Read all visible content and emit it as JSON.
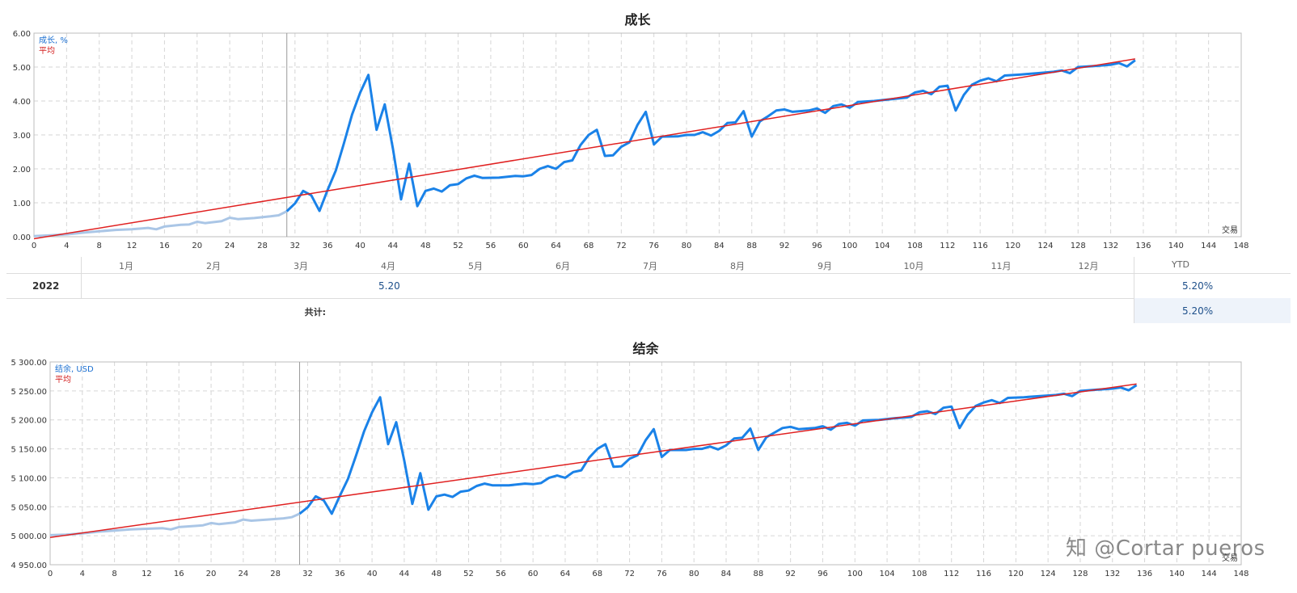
{
  "chart_data": [
    {
      "type": "line",
      "title": "成长",
      "legend": [
        "成长, %",
        "平均"
      ],
      "xlabel": "交易",
      "xlim": [
        0,
        148
      ],
      "ylim": [
        0,
        6
      ],
      "x_ticks": [
        0,
        4,
        8,
        12,
        16,
        20,
        24,
        28,
        32,
        36,
        40,
        44,
        48,
        52,
        56,
        60,
        64,
        68,
        72,
        76,
        80,
        84,
        88,
        92,
        96,
        100,
        104,
        108,
        112,
        116,
        120,
        124,
        128,
        132,
        136,
        140,
        144,
        148
      ],
      "y_ticks": [
        "0.00",
        "1.00",
        "2.00",
        "3.00",
        "4.00",
        "5.00",
        "6.00"
      ],
      "y_tick_values": [
        0,
        1,
        2,
        3,
        4,
        5,
        6
      ],
      "grid": true,
      "legend_position": "top-left",
      "divider_x": 31,
      "colors": {
        "line": "#1a82e8",
        "early_line": "#aac6e6",
        "average": "#e02020"
      },
      "series": [
        {
          "name": "成长, %",
          "points": [
            [
              0,
              0.02
            ],
            [
              2,
              0.04
            ],
            [
              4,
              0.07
            ],
            [
              6,
              0.12
            ],
            [
              8,
              0.16
            ],
            [
              10,
              0.2
            ],
            [
              12,
              0.22
            ],
            [
              14,
              0.26
            ],
            [
              15,
              0.22
            ],
            [
              16,
              0.3
            ],
            [
              18,
              0.35
            ],
            [
              19,
              0.36
            ],
            [
              20,
              0.44
            ],
            [
              21,
              0.4
            ],
            [
              23,
              0.46
            ],
            [
              24,
              0.56
            ],
            [
              25,
              0.52
            ],
            [
              27,
              0.55
            ],
            [
              29,
              0.6
            ],
            [
              30,
              0.63
            ],
            [
              31,
              0.75
            ],
            [
              32,
              0.98
            ],
            [
              33,
              1.35
            ],
            [
              34,
              1.22
            ],
            [
              35,
              0.76
            ],
            [
              36,
              1.38
            ],
            [
              37,
              1.95
            ],
            [
              38,
              2.75
            ],
            [
              39,
              3.6
            ],
            [
              40,
              4.25
            ],
            [
              41,
              4.77
            ],
            [
              42,
              3.15
            ],
            [
              43,
              3.9
            ],
            [
              44,
              2.6
            ],
            [
              45,
              1.1
            ],
            [
              46,
              2.15
            ],
            [
              47,
              0.9
            ],
            [
              48,
              1.35
            ],
            [
              49,
              1.42
            ],
            [
              50,
              1.33
            ],
            [
              51,
              1.52
            ],
            [
              52,
              1.55
            ],
            [
              53,
              1.72
            ],
            [
              54,
              1.8
            ],
            [
              55,
              1.73
            ],
            [
              57,
              1.74
            ],
            [
              59,
              1.79
            ],
            [
              60,
              1.78
            ],
            [
              61,
              1.82
            ],
            [
              62,
              2.0
            ],
            [
              63,
              2.08
            ],
            [
              64,
              2.0
            ],
            [
              65,
              2.2
            ],
            [
              66,
              2.25
            ],
            [
              67,
              2.7
            ],
            [
              68,
              3.0
            ],
            [
              69,
              3.15
            ],
            [
              70,
              2.38
            ],
            [
              71,
              2.4
            ],
            [
              72,
              2.65
            ],
            [
              73,
              2.78
            ],
            [
              74,
              3.3
            ],
            [
              75,
              3.68
            ],
            [
              76,
              2.72
            ],
            [
              77,
              2.95
            ],
            [
              79,
              2.96
            ],
            [
              80,
              3.0
            ],
            [
              81,
              3.0
            ],
            [
              82,
              3.08
            ],
            [
              83,
              2.98
            ],
            [
              84,
              3.12
            ],
            [
              85,
              3.35
            ],
            [
              86,
              3.37
            ],
            [
              87,
              3.7
            ],
            [
              88,
              2.95
            ],
            [
              89,
              3.4
            ],
            [
              90,
              3.55
            ],
            [
              91,
              3.72
            ],
            [
              92,
              3.75
            ],
            [
              93,
              3.68
            ],
            [
              95,
              3.72
            ],
            [
              96,
              3.78
            ],
            [
              97,
              3.65
            ],
            [
              98,
              3.85
            ],
            [
              99,
              3.9
            ],
            [
              100,
              3.8
            ],
            [
              101,
              3.97
            ],
            [
              103,
              4.0
            ],
            [
              105,
              4.05
            ],
            [
              107,
              4.1
            ],
            [
              108,
              4.25
            ],
            [
              109,
              4.3
            ],
            [
              110,
              4.2
            ],
            [
              111,
              4.42
            ],
            [
              112,
              4.45
            ],
            [
              113,
              3.72
            ],
            [
              114,
              4.18
            ],
            [
              115,
              4.48
            ],
            [
              116,
              4.6
            ],
            [
              117,
              4.67
            ],
            [
              118,
              4.58
            ],
            [
              119,
              4.75
            ],
            [
              121,
              4.78
            ],
            [
              123,
              4.82
            ],
            [
              125,
              4.86
            ],
            [
              126,
              4.9
            ],
            [
              127,
              4.82
            ],
            [
              128,
              5.0
            ],
            [
              130,
              5.03
            ],
            [
              132,
              5.07
            ],
            [
              133,
              5.12
            ],
            [
              134,
              5.02
            ],
            [
              135,
              5.2
            ]
          ]
        },
        {
          "name": "平均",
          "points": [
            [
              0,
              -0.06
            ],
            [
              135,
              5.24
            ]
          ]
        }
      ]
    },
    {
      "type": "line",
      "title": "结余",
      "legend": [
        "结余, USD",
        "平均"
      ],
      "xlabel": "交易",
      "xlim": [
        0,
        148
      ],
      "ylim": [
        4950,
        5300
      ],
      "x_ticks": [
        0,
        4,
        8,
        12,
        16,
        20,
        24,
        28,
        32,
        36,
        40,
        44,
        48,
        52,
        56,
        60,
        64,
        68,
        72,
        76,
        80,
        84,
        88,
        92,
        96,
        100,
        104,
        108,
        112,
        116,
        120,
        124,
        128,
        132,
        136,
        140,
        144,
        148
      ],
      "y_ticks": [
        "4 950.00",
        "5 000.00",
        "5 050.00",
        "5 100.00",
        "5 150.00",
        "5 200.00",
        "5 250.00",
        "5 300.00"
      ],
      "y_tick_values": [
        4950,
        5000,
        5050,
        5100,
        5150,
        5200,
        5250,
        5300
      ],
      "grid": true,
      "legend_position": "top-left",
      "divider_x": 31,
      "colors": {
        "line": "#1a82e8",
        "early_line": "#aac6e6",
        "average": "#e02020"
      },
      "series": [
        {
          "name": "结余, USD",
          "points": [
            [
              0,
              5001
            ],
            [
              2,
              5002
            ],
            [
              4,
              5004
            ],
            [
              6,
              5007
            ],
            [
              8,
              5009
            ],
            [
              10,
              5011
            ],
            [
              12,
              5012
            ],
            [
              14,
              5013
            ],
            [
              15,
              5011
            ],
            [
              16,
              5015
            ],
            [
              18,
              5017
            ],
            [
              19,
              5018
            ],
            [
              20,
              5022
            ],
            [
              21,
              5020
            ],
            [
              23,
              5023
            ],
            [
              24,
              5028
            ],
            [
              25,
              5026
            ],
            [
              27,
              5028
            ],
            [
              29,
              5030
            ],
            [
              30,
              5032
            ],
            [
              31,
              5038
            ],
            [
              32,
              5049
            ],
            [
              33,
              5068
            ],
            [
              34,
              5061
            ],
            [
              35,
              5038
            ],
            [
              36,
              5069
            ],
            [
              37,
              5098
            ],
            [
              38,
              5138
            ],
            [
              39,
              5180
            ],
            [
              40,
              5213
            ],
            [
              41,
              5239
            ],
            [
              42,
              5158
            ],
            [
              43,
              5196
            ],
            [
              44,
              5130
            ],
            [
              45,
              5055
            ],
            [
              46,
              5108
            ],
            [
              47,
              5045
            ],
            [
              48,
              5068
            ],
            [
              49,
              5071
            ],
            [
              50,
              5067
            ],
            [
              51,
              5076
            ],
            [
              52,
              5078
            ],
            [
              53,
              5086
            ],
            [
              54,
              5090
            ],
            [
              55,
              5087
            ],
            [
              57,
              5087
            ],
            [
              59,
              5090
            ],
            [
              60,
              5089
            ],
            [
              61,
              5091
            ],
            [
              62,
              5100
            ],
            [
              63,
              5104
            ],
            [
              64,
              5100
            ],
            [
              65,
              5110
            ],
            [
              66,
              5113
            ],
            [
              67,
              5135
            ],
            [
              68,
              5150
            ],
            [
              69,
              5158
            ],
            [
              70,
              5119
            ],
            [
              71,
              5120
            ],
            [
              72,
              5133
            ],
            [
              73,
              5139
            ],
            [
              74,
              5165
            ],
            [
              75,
              5184
            ],
            [
              76,
              5136
            ],
            [
              77,
              5148
            ],
            [
              79,
              5148
            ],
            [
              80,
              5150
            ],
            [
              81,
              5150
            ],
            [
              82,
              5154
            ],
            [
              83,
              5149
            ],
            [
              84,
              5156
            ],
            [
              85,
              5168
            ],
            [
              86,
              5169
            ],
            [
              87,
              5185
            ],
            [
              88,
              5148
            ],
            [
              89,
              5170
            ],
            [
              90,
              5178
            ],
            [
              91,
              5186
            ],
            [
              92,
              5188
            ],
            [
              93,
              5184
            ],
            [
              95,
              5186
            ],
            [
              96,
              5189
            ],
            [
              97,
              5183
            ],
            [
              98,
              5193
            ],
            [
              99,
              5195
            ],
            [
              100,
              5190
            ],
            [
              101,
              5199
            ],
            [
              103,
              5200
            ],
            [
              105,
              5203
            ],
            [
              107,
              5205
            ],
            [
              108,
              5213
            ],
            [
              109,
              5215
            ],
            [
              110,
              5210
            ],
            [
              111,
              5221
            ],
            [
              112,
              5223
            ],
            [
              113,
              5186
            ],
            [
              114,
              5209
            ],
            [
              115,
              5224
            ],
            [
              116,
              5230
            ],
            [
              117,
              5234
            ],
            [
              118,
              5229
            ],
            [
              119,
              5238
            ],
            [
              121,
              5239
            ],
            [
              123,
              5241
            ],
            [
              125,
              5243
            ],
            [
              126,
              5245
            ],
            [
              127,
              5241
            ],
            [
              128,
              5250
            ],
            [
              130,
              5252
            ],
            [
              132,
              5254
            ],
            [
              133,
              5256
            ],
            [
              134,
              5251
            ],
            [
              135,
              5260
            ]
          ]
        },
        {
          "name": "平均",
          "points": [
            [
              0,
              4997
            ],
            [
              135,
              5262
            ]
          ]
        }
      ]
    }
  ],
  "table": {
    "months": [
      "1月",
      "2月",
      "3月",
      "4月",
      "5月",
      "6月",
      "7月",
      "8月",
      "9月",
      "10月",
      "11月",
      "12月"
    ],
    "ytd_header": "YTD",
    "year": "2022",
    "april_value": "5.20",
    "ytd_value": "5.20%",
    "total_label": "共计:",
    "total_value": "5.20%"
  },
  "watermark": "知 @Cortar pueros"
}
